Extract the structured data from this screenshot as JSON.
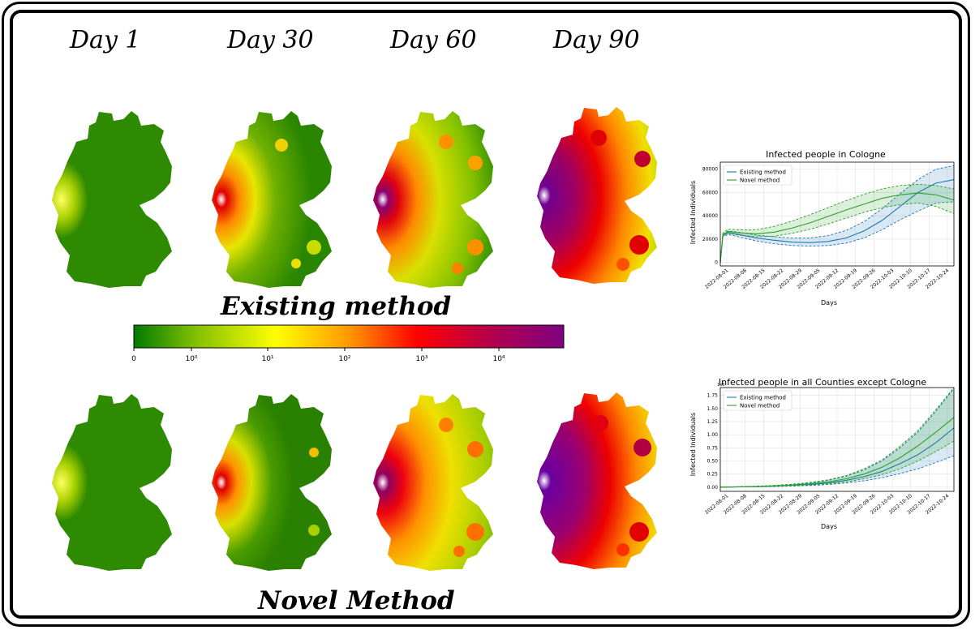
{
  "day_labels": [
    "Day 1",
    "Day 30",
    "Day 60",
    "Day 90"
  ],
  "method_labels": {
    "existing": "Existing method",
    "novel": "Novel Method"
  },
  "colorbar": {
    "ticks": [
      "0",
      "10⁰",
      "10¹",
      "10²",
      "10³",
      "10⁴"
    ],
    "colors": [
      "#007a00",
      "#7fbf00",
      "#ffff00",
      "#ff9900",
      "#ff0000",
      "#b00050",
      "#800080"
    ]
  },
  "chart_data": [
    {
      "type": "line",
      "title": "Infected people in Cologne",
      "xlabel": "Days",
      "ylabel": "Infected Individuals",
      "x_ticks": [
        "2022-08-01",
        "2022-08-08",
        "2022-08-15",
        "2022-08-22",
        "2022-08-29",
        "2022-09-05",
        "2022-09-12",
        "2022-09-19",
        "2022-09-26",
        "2022-10-03",
        "2022-10-10",
        "2022-10-17",
        "2022-10-24"
      ],
      "y_ticks": [
        "0",
        "20000",
        "40000",
        "60000",
        "80000"
      ],
      "ylim": [
        -3000,
        86000
      ],
      "x": [
        0,
        1,
        3,
        7,
        14,
        21,
        28,
        35,
        42,
        49,
        56,
        63,
        70,
        77,
        84,
        91
      ],
      "series": [
        {
          "name": "Existing method",
          "color": "#1f77b4",
          "values": [
            0,
            23000,
            25500,
            24000,
            21000,
            19000,
            17500,
            17000,
            18000,
            21000,
            27000,
            36000,
            48000,
            60000,
            68000,
            71000
          ],
          "lower": [
            0,
            22000,
            24000,
            22000,
            18500,
            16000,
            14500,
            14000,
            14500,
            16500,
            21000,
            28000,
            36500,
            44000,
            51000,
            52000
          ],
          "upper": [
            0,
            24000,
            27000,
            26000,
            23500,
            22000,
            21000,
            21000,
            23000,
            27500,
            35000,
            46000,
            59000,
            71000,
            80000,
            83000
          ]
        },
        {
          "name": "Novel method",
          "color": "#2ca02c",
          "values": [
            0,
            24000,
            26500,
            25500,
            24500,
            26000,
            29500,
            34000,
            39500,
            45000,
            50000,
            55000,
            58000,
            59500,
            58000,
            53500
          ],
          "lower": [
            0,
            23000,
            25000,
            23500,
            22000,
            22500,
            25000,
            28500,
            33000,
            38000,
            43000,
            47000,
            49500,
            51000,
            48000,
            42000
          ],
          "upper": [
            0,
            25500,
            28500,
            28000,
            28000,
            31000,
            35500,
            41000,
            47000,
            53000,
            58500,
            63000,
            66000,
            67000,
            66000,
            63000
          ]
        }
      ],
      "legend": "top-left",
      "grid": true
    },
    {
      "type": "line",
      "title": "Infected people in all Counties except Cologne",
      "xlabel": "Days",
      "ylabel": "Infected Individuals",
      "y_scale_note": "1e6",
      "x_ticks": [
        "2022-08-01",
        "2022-08-08",
        "2022-08-15",
        "2022-08-22",
        "2022-08-29",
        "2022-09-05",
        "2022-09-12",
        "2022-09-19",
        "2022-09-26",
        "2022-10-03",
        "2022-10-10",
        "2022-10-17",
        "2022-10-24"
      ],
      "y_ticks": [
        "0.00",
        "0.25",
        "0.50",
        "0.75",
        "1.00",
        "1.25",
        "1.50",
        "1.75"
      ],
      "ylim": [
        -0.08,
        1.9
      ],
      "x": [
        0,
        7,
        14,
        21,
        28,
        35,
        42,
        49,
        56,
        63,
        70,
        77,
        84,
        91
      ],
      "series": [
        {
          "name": "Existing method",
          "color": "#1f77b4",
          "values": [
            0,
            0.005,
            0.01,
            0.02,
            0.035,
            0.05,
            0.08,
            0.13,
            0.2,
            0.3,
            0.45,
            0.62,
            0.85,
            1.13
          ],
          "lower": [
            0,
            0.003,
            0.007,
            0.013,
            0.022,
            0.032,
            0.05,
            0.08,
            0.12,
            0.18,
            0.26,
            0.35,
            0.47,
            0.6
          ],
          "upper": [
            0,
            0.008,
            0.016,
            0.03,
            0.05,
            0.08,
            0.13,
            0.21,
            0.33,
            0.5,
            0.75,
            1.05,
            1.45,
            1.88
          ]
        },
        {
          "name": "Novel method",
          "color": "#2ca02c",
          "values": [
            0,
            0.006,
            0.013,
            0.025,
            0.042,
            0.065,
            0.1,
            0.16,
            0.25,
            0.38,
            0.56,
            0.79,
            1.05,
            1.33
          ],
          "lower": [
            0,
            0.004,
            0.009,
            0.017,
            0.028,
            0.042,
            0.065,
            0.1,
            0.16,
            0.24,
            0.35,
            0.5,
            0.68,
            0.88
          ],
          "upper": [
            0,
            0.009,
            0.018,
            0.034,
            0.057,
            0.09,
            0.14,
            0.22,
            0.35,
            0.52,
            0.78,
            1.08,
            1.48,
            1.9
          ]
        }
      ],
      "legend": "top-left",
      "grid": true
    }
  ]
}
